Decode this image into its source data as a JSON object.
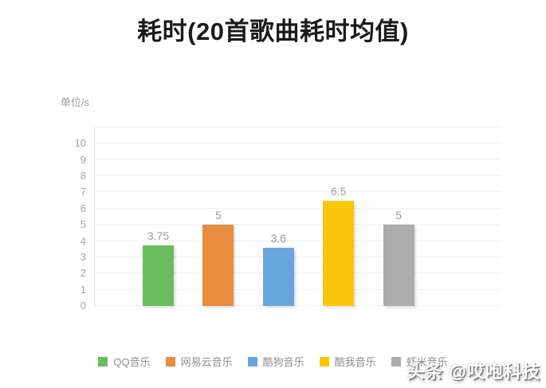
{
  "chart": {
    "watermark": "头条 @哎咆科技"
  },
  "chart_data": {
    "type": "bar",
    "title": "耗时(20首歌曲耗时均值)",
    "ylabel": "单位/s",
    "xlabel": "",
    "categories": [
      "QQ音乐",
      "网易云音乐",
      "酷狗音乐",
      "酷我音乐",
      "虾米音乐"
    ],
    "values": [
      3.75,
      5,
      3.6,
      6.5,
      5
    ],
    "value_labels": [
      "3.75",
      "5",
      "3.6",
      "6.5",
      "5"
    ],
    "colors": [
      "#6abd5c",
      "#e88c3e",
      "#68a6db",
      "#f9c60a",
      "#acacac"
    ],
    "ylim": [
      0,
      11
    ],
    "yticks": [
      0,
      1,
      2,
      3,
      4,
      5,
      6,
      7,
      8,
      9,
      10
    ],
    "grid": true,
    "legend_position": "bottom",
    "label_color": "#9a9a9a",
    "grid_color": "#efefef"
  }
}
